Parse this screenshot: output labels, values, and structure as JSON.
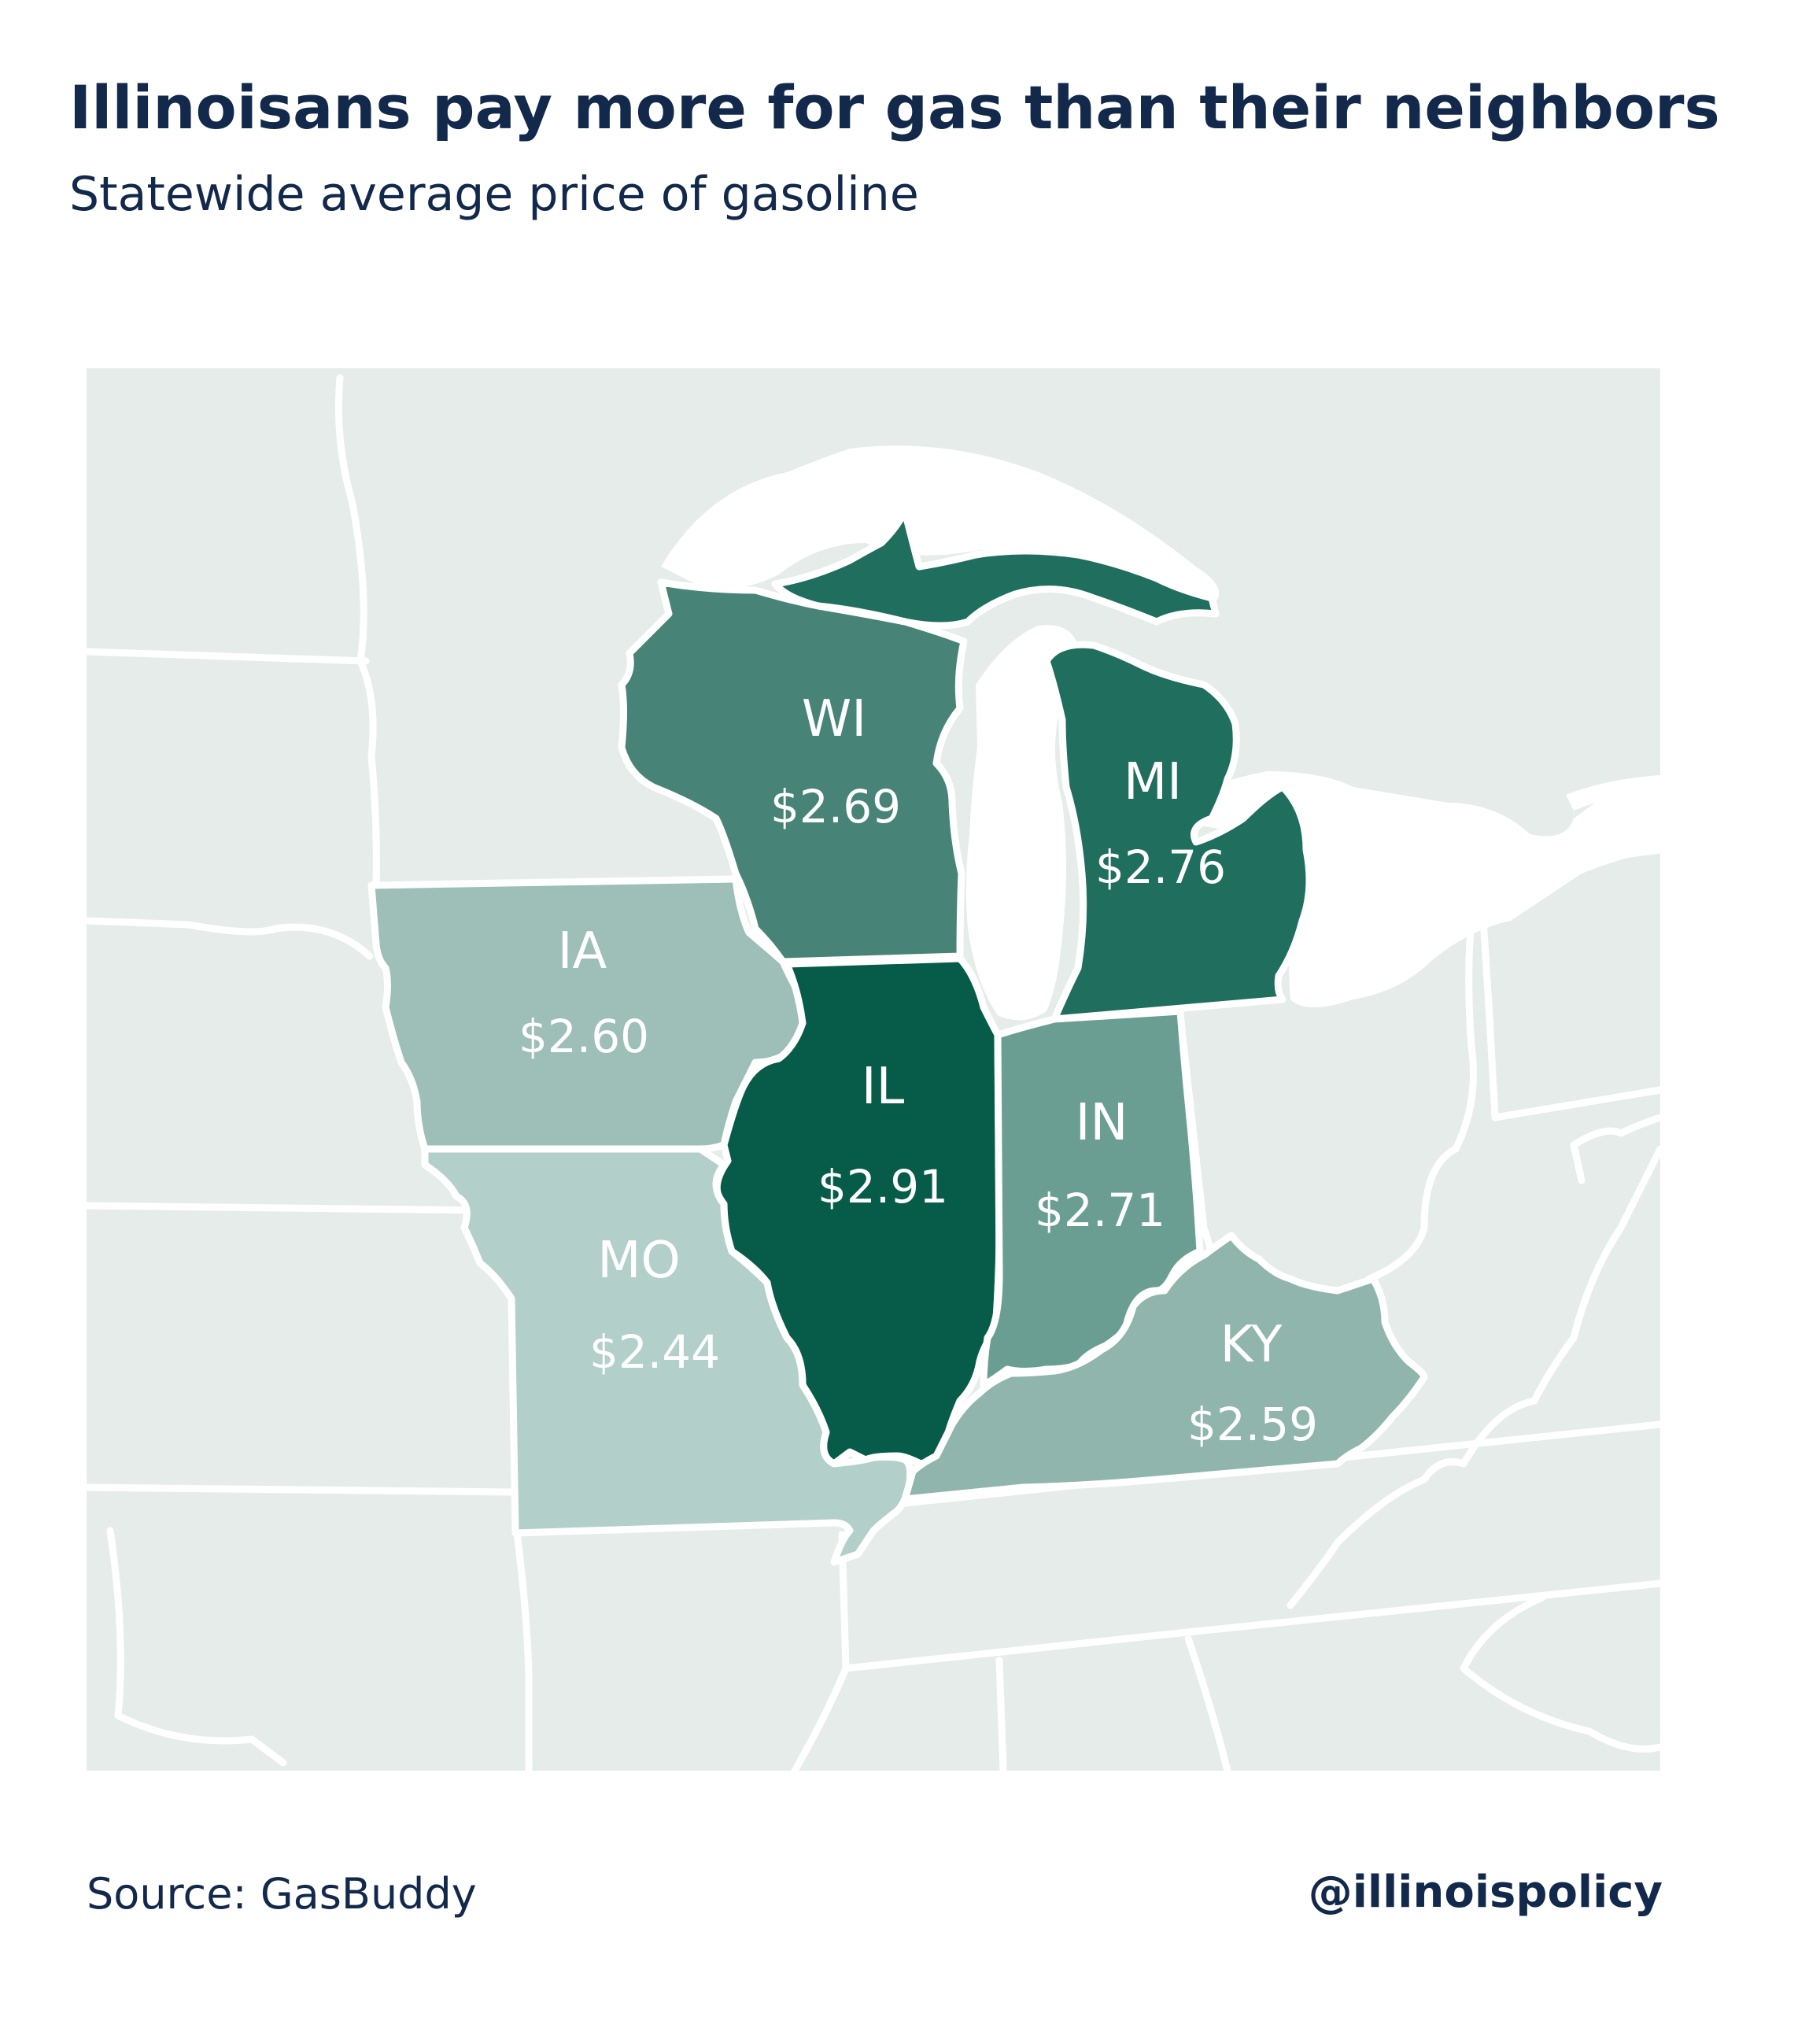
{
  "header": {
    "title": "Illinoisans pay more for gas than their neighbors",
    "subtitle": "Statewide average price of gasoline"
  },
  "colors": {
    "background_land": "#e6ecea",
    "lake": "#ffffff",
    "border": "#ffffff",
    "IL": "#075c49",
    "MI": "#1f6e5e",
    "WI": "#478477",
    "IN": "#6b9e93",
    "KY": "#8fb5ad",
    "IA": "#9dbfb8",
    "MO": "#b3cfca",
    "text": "#13294b"
  },
  "states": [
    {
      "id": "WI",
      "abbr": "WI",
      "price": "$2.69"
    },
    {
      "id": "MI",
      "abbr": "MI",
      "price": "$2.76"
    },
    {
      "id": "IA",
      "abbr": "IA",
      "price": "$2.60"
    },
    {
      "id": "IL",
      "abbr": "IL",
      "price": "$2.91"
    },
    {
      "id": "IN",
      "abbr": "IN",
      "price": "$2.71"
    },
    {
      "id": "MO",
      "abbr": "MO",
      "price": "$2.44"
    },
    {
      "id": "KY",
      "abbr": "KY",
      "price": "$2.59"
    }
  ],
  "footer": {
    "source": "Source: GasBuddy",
    "handle": "@illinoispolicy"
  }
}
